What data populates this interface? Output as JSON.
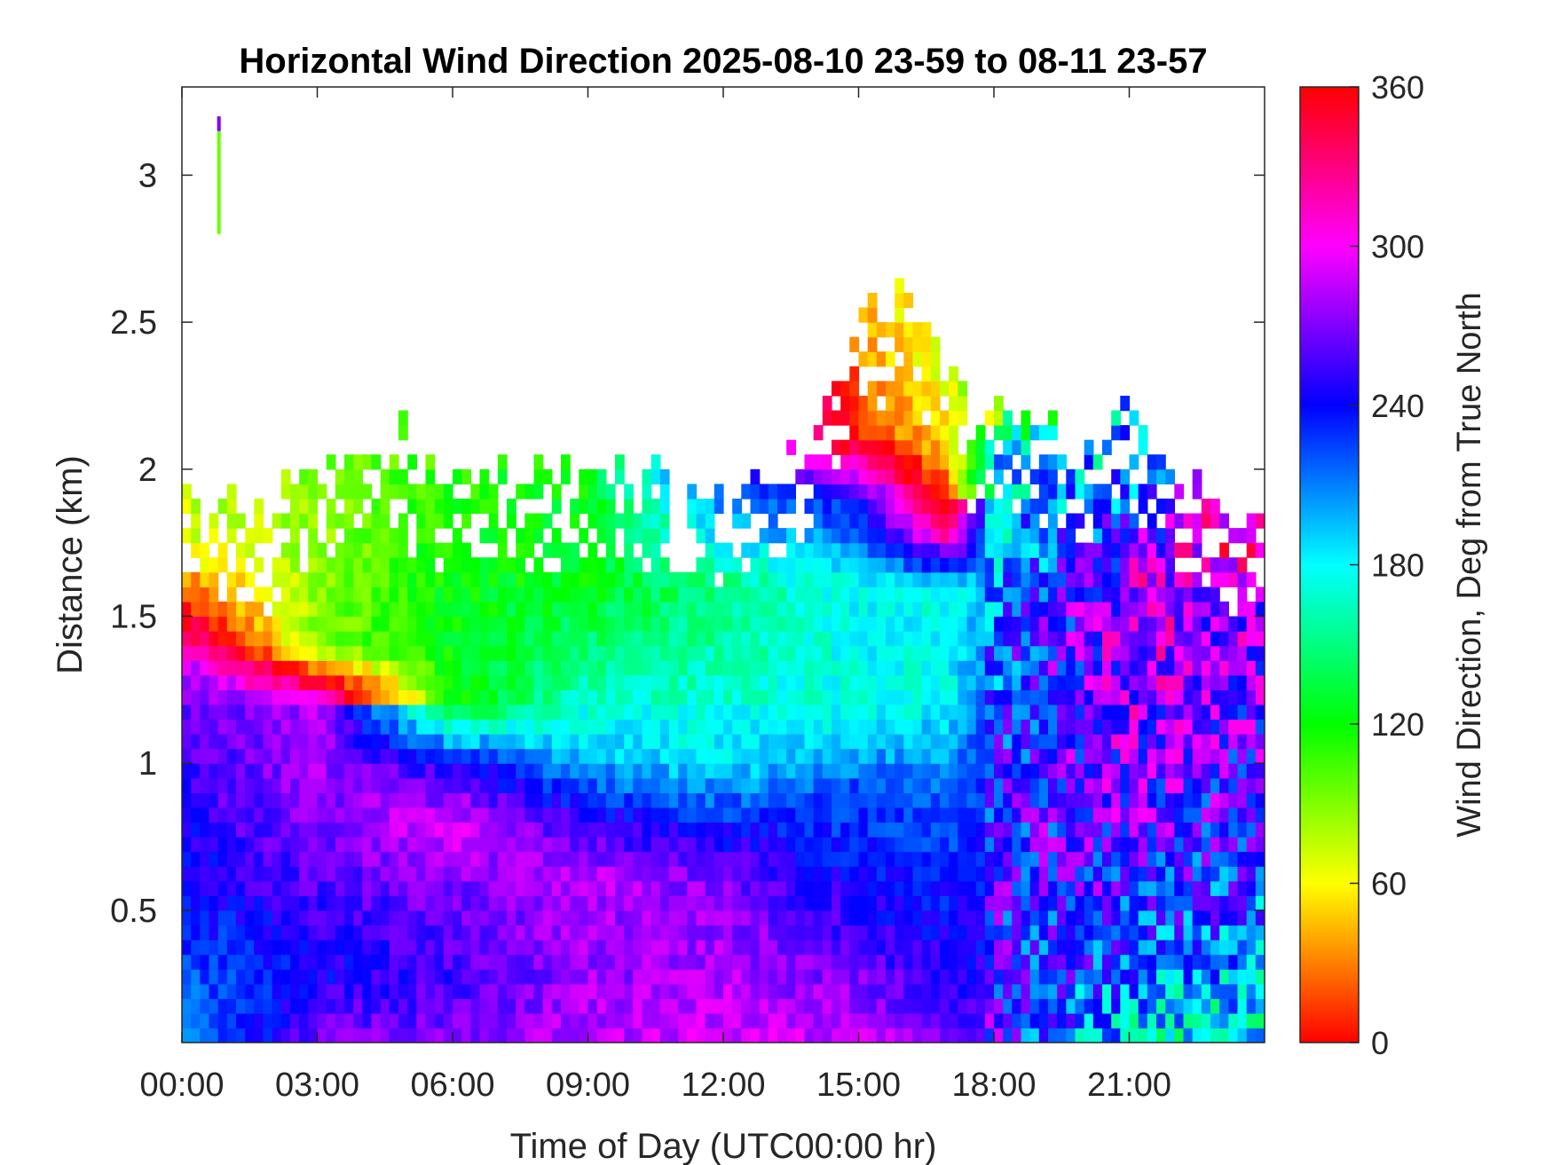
{
  "chart_data": {
    "type": "heatmap",
    "title": "Horizontal Wind Direction 2025-08-10 23-59 to 08-11 23-57",
    "xlabel": "Time of Day (UTC00:00 hr)",
    "ylabel": "Distance (km)",
    "colorbar_label": "Wind Direction, Deg from True North",
    "xlim": [
      0,
      24
    ],
    "ylim": [
      0.05,
      3.3
    ],
    "clim": [
      0,
      360
    ],
    "x_ticks": [
      {
        "value": 0,
        "label": "00:00"
      },
      {
        "value": 3,
        "label": "03:00"
      },
      {
        "value": 6,
        "label": "06:00"
      },
      {
        "value": 9,
        "label": "09:00"
      },
      {
        "value": 12,
        "label": "12:00"
      },
      {
        "value": 15,
        "label": "15:00"
      },
      {
        "value": 18,
        "label": "18:00"
      },
      {
        "value": 21,
        "label": "21:00"
      }
    ],
    "y_ticks": [
      {
        "value": 0.5,
        "label": "0.5"
      },
      {
        "value": 1,
        "label": "1"
      },
      {
        "value": 1.5,
        "label": "1.5"
      },
      {
        "value": 2,
        "label": "2"
      },
      {
        "value": 2.5,
        "label": "2.5"
      },
      {
        "value": 3,
        "label": "3"
      }
    ],
    "colorbar_ticks": [
      {
        "value": 0,
        "label": "0"
      },
      {
        "value": 60,
        "label": "60"
      },
      {
        "value": 120,
        "label": "120"
      },
      {
        "value": 180,
        "label": "180"
      },
      {
        "value": 240,
        "label": "240"
      },
      {
        "value": 300,
        "label": "300"
      },
      {
        "value": 360,
        "label": "360"
      }
    ],
    "colormap": [
      "#ff0000",
      "#ffff00",
      "#00ff00",
      "#00ffff",
      "#0000ff",
      "#ff00ff",
      "#ff0000"
    ],
    "time_resolution_hr": 0.2,
    "height_resolution_km": 0.05,
    "data_top_km": [
      [
        0,
        1.9
      ],
      [
        1,
        1.85
      ],
      [
        2,
        1.85
      ],
      [
        3,
        2.0
      ],
      [
        4,
        2.05
      ],
      [
        5,
        2.1
      ],
      [
        6,
        2.0
      ],
      [
        7,
        1.95
      ],
      [
        8,
        1.95
      ],
      [
        9,
        1.95
      ],
      [
        10,
        2.05
      ],
      [
        11,
        1.95
      ],
      [
        12,
        1.95
      ],
      [
        13,
        1.95
      ],
      [
        14,
        2.05
      ],
      [
        15,
        2.5
      ],
      [
        16,
        2.55
      ],
      [
        17,
        2.4
      ],
      [
        17.8,
        2.1
      ],
      [
        18,
        2.2
      ],
      [
        19,
        2.15
      ],
      [
        20,
        2.0
      ],
      [
        21,
        2.2
      ],
      [
        22,
        1.95
      ],
      [
        23,
        1.85
      ],
      [
        24,
        1.8
      ]
    ],
    "direction_profiles_deg": [
      {
        "time": 0,
        "h": [
          0.05,
          0.3,
          0.6,
          1.0,
          1.3,
          1.5,
          1.7,
          2.0
        ],
        "dir": [
          200,
          220,
          240,
          255,
          270,
          350,
          60,
          80
        ]
      },
      {
        "time": 3,
        "h": [
          0.05,
          0.3,
          0.6,
          0.9,
          1.2,
          1.4,
          1.7,
          2.1
        ],
        "dir": [
          270,
          240,
          260,
          275,
          280,
          90,
          85,
          90
        ]
      },
      {
        "time": 6,
        "h": [
          0.05,
          0.3,
          0.6,
          0.8,
          1.0,
          1.2,
          1.6,
          2.0
        ],
        "dir": [
          270,
          255,
          270,
          295,
          245,
          120,
          125,
          110
        ]
      },
      {
        "time": 9,
        "h": [
          0.05,
          0.3,
          0.6,
          0.8,
          1.0,
          1.2,
          1.6,
          2.0
        ],
        "dir": [
          285,
          275,
          285,
          250,
          200,
          170,
          125,
          125
        ]
      },
      {
        "time": 12,
        "h": [
          0.05,
          0.3,
          0.6,
          0.8,
          1.0,
          1.3,
          1.6,
          2.0
        ],
        "dir": [
          290,
          280,
          270,
          235,
          185,
          165,
          150,
          235
        ]
      },
      {
        "time": 15,
        "h": [
          0.05,
          0.3,
          0.6,
          0.9,
          1.2,
          1.6,
          1.9,
          2.1,
          2.5
        ],
        "dir": [
          290,
          265,
          240,
          225,
          175,
          180,
          240,
          10,
          40
        ]
      },
      {
        "time": 17,
        "h": [
          0.05,
          0.3,
          0.6,
          0.9,
          1.2,
          1.6,
          1.8,
          2.0,
          2.3
        ],
        "dir": [
          265,
          245,
          235,
          215,
          180,
          175,
          340,
          40,
          70
        ]
      },
      {
        "time": 18,
        "h": [
          0.05,
          0.4,
          0.8,
          1.2,
          1.6,
          2.0,
          2.2
        ],
        "dir": [
          250,
          245,
          240,
          230,
          200,
          190,
          100
        ]
      },
      {
        "time": 21,
        "h": [
          0.05,
          0.4,
          0.8,
          1.2,
          1.6,
          2.0,
          2.2
        ],
        "dir": [
          180,
          230,
          260,
          280,
          290,
          200,
          210
        ]
      },
      {
        "time": 24,
        "h": [
          0.05,
          0.4,
          0.7,
          1.0,
          1.3,
          1.6,
          1.8
        ],
        "dir": [
          175,
          205,
          235,
          250,
          270,
          285,
          350
        ]
      }
    ],
    "grid": false,
    "colorbar_position": "right"
  }
}
